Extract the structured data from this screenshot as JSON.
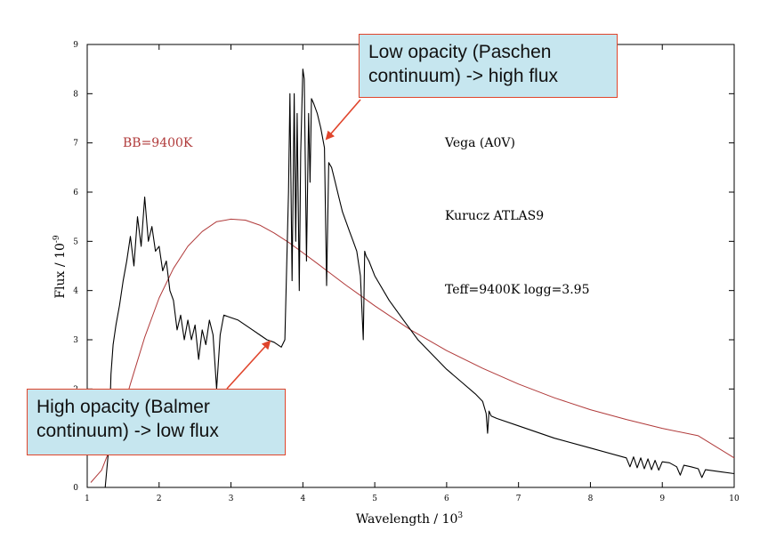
{
  "chart_data": {
    "type": "line",
    "xlabel": "Wavelength / 10",
    "xlabel_exp": "3",
    "ylabel": "Flux / 10",
    "ylabel_exp": "-9",
    "xlim": [
      1,
      10
    ],
    "ylim": [
      0,
      9
    ],
    "xticks": [
      "1",
      "2",
      "3",
      "4",
      "5",
      "6",
      "7",
      "8",
      "9",
      "10"
    ],
    "yticks": [
      "0",
      "1",
      "2",
      "3",
      "4",
      "5",
      "6",
      "7",
      "8",
      "9"
    ],
    "grid": false,
    "series": [
      {
        "name": "BB=9400K",
        "color": "#b03a3a",
        "x": [
          1.05,
          1.2,
          1.4,
          1.6,
          1.8,
          2.0,
          2.2,
          2.4,
          2.6,
          2.8,
          3.0,
          3.2,
          3.4,
          3.6,
          3.8,
          4.0,
          4.2,
          4.4,
          4.6,
          4.8,
          5.0,
          5.5,
          6.0,
          6.5,
          7.0,
          7.5,
          8.0,
          8.5,
          9.0,
          9.5,
          10.0
        ],
        "y": [
          0.1,
          0.35,
          1.1,
          2.1,
          3.05,
          3.85,
          4.45,
          4.9,
          5.2,
          5.4,
          5.45,
          5.43,
          5.33,
          5.17,
          4.98,
          4.77,
          4.55,
          4.33,
          4.11,
          3.9,
          3.69,
          3.2,
          2.78,
          2.42,
          2.1,
          1.82,
          1.58,
          1.38,
          1.2,
          1.05,
          0.6
        ]
      },
      {
        "name": "Vega (A0V) Kurucz ATLAS9",
        "color": "#000000",
        "x": [
          1.25,
          1.3,
          1.33,
          1.36,
          1.4,
          1.45,
          1.5,
          1.55,
          1.6,
          1.65,
          1.7,
          1.75,
          1.8,
          1.85,
          1.9,
          1.95,
          2.0,
          2.05,
          2.1,
          2.15,
          2.2,
          2.25,
          2.3,
          2.35,
          2.4,
          2.45,
          2.5,
          2.55,
          2.6,
          2.65,
          2.7,
          2.75,
          2.8,
          2.85,
          2.9,
          3.0,
          3.1,
          3.2,
          3.3,
          3.4,
          3.5,
          3.6,
          3.7,
          3.75,
          3.8,
          3.82,
          3.85,
          3.88,
          3.9,
          3.92,
          3.95,
          3.97,
          4.0,
          4.02,
          4.05,
          4.08,
          4.1,
          4.12,
          4.15,
          4.2,
          4.25,
          4.3,
          4.33,
          4.36,
          4.4,
          4.45,
          4.5,
          4.55,
          4.6,
          4.65,
          4.7,
          4.75,
          4.8,
          4.84,
          4.86,
          4.88,
          4.92,
          5.0,
          5.2,
          5.4,
          5.6,
          5.8,
          6.0,
          6.2,
          6.4,
          6.5,
          6.55,
          6.57,
          6.59,
          6.62,
          6.7,
          7.0,
          7.5,
          8.0,
          8.5,
          8.55,
          8.6,
          8.65,
          8.7,
          8.75,
          8.8,
          8.85,
          8.9,
          8.95,
          9.0,
          9.1,
          9.2,
          9.25,
          9.3,
          9.4,
          9.5,
          9.55,
          9.6,
          9.7,
          9.8,
          10.0
        ],
        "y": [
          0.0,
          0.8,
          2.3,
          2.9,
          3.3,
          3.7,
          4.2,
          4.6,
          5.1,
          4.5,
          5.5,
          4.9,
          5.9,
          5.0,
          5.3,
          4.8,
          4.9,
          4.4,
          4.6,
          4.0,
          3.8,
          3.2,
          3.5,
          3.0,
          3.4,
          3.0,
          3.3,
          2.6,
          3.2,
          2.9,
          3.4,
          3.1,
          2.0,
          3.1,
          3.5,
          3.45,
          3.4,
          3.3,
          3.2,
          3.1,
          3.0,
          2.95,
          2.85,
          3.0,
          6.0,
          8.0,
          4.2,
          8.0,
          5.0,
          7.6,
          4.0,
          6.8,
          8.5,
          8.3,
          4.6,
          7.6,
          6.2,
          7.9,
          7.8,
          7.6,
          7.3,
          6.9,
          4.1,
          6.6,
          6.5,
          6.2,
          5.9,
          5.6,
          5.4,
          5.2,
          5.0,
          4.8,
          4.3,
          3.0,
          4.8,
          4.7,
          4.6,
          4.3,
          3.8,
          3.4,
          3.0,
          2.7,
          2.4,
          2.15,
          1.9,
          1.75,
          1.5,
          1.1,
          1.55,
          1.45,
          1.4,
          1.25,
          1.0,
          0.8,
          0.6,
          0.42,
          0.62,
          0.4,
          0.6,
          0.38,
          0.58,
          0.36,
          0.55,
          0.35,
          0.52,
          0.5,
          0.42,
          0.25,
          0.45,
          0.42,
          0.38,
          0.2,
          0.36,
          0.34,
          0.32,
          0.28
        ]
      }
    ],
    "annotations": {
      "bb_label": "BB=9400K",
      "star": "Vega (A0V)",
      "model": "Kurucz ATLAS9",
      "params": "Teff=9400K logg=3.95"
    }
  },
  "callouts": {
    "top": {
      "line1": "Low opacity (Paschen",
      "line2": "continuum) -> high flux",
      "arrow_color": "#e0452c"
    },
    "bottom": {
      "line1": "High opacity (Balmer",
      "line2": "continuum) -> low flux",
      "arrow_color": "#e0452c"
    }
  }
}
